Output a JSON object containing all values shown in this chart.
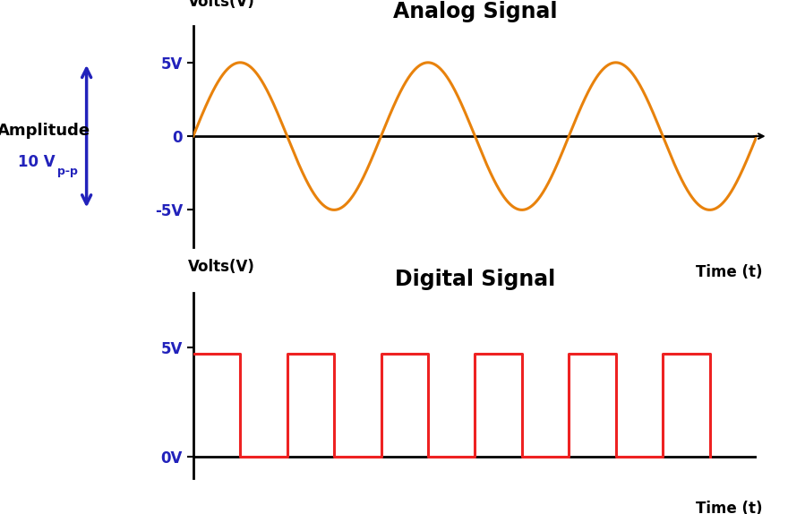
{
  "analog_title": "Analog Signal",
  "digital_title": "Digital Signal",
  "analog_ylabel": "Volts(V)",
  "digital_ylabel": "Volts(V)",
  "xlabel": "Time (t)",
  "analog_yticks": [
    -5,
    0,
    5
  ],
  "analog_yticklabels": [
    "-5V",
    "0",
    "5V"
  ],
  "digital_yticks": [
    0,
    5
  ],
  "digital_yticklabels": [
    "0V",
    "5V"
  ],
  "analog_num_cycles": 3,
  "analog_amplitude": 5,
  "analog_color": "#E8820C",
  "digital_color": "#EE2222",
  "axis_color": "#000000",
  "label_color": "#2222BB",
  "amplitude_text": "Amplitude",
  "amplitude_subtext": "10 V",
  "title_color": "#000000",
  "title_fontsize": 17,
  "label_fontsize": 12,
  "tick_fontsize": 12,
  "analog_ylim": [
    -7.5,
    7.5
  ],
  "digital_ylim": [
    -1.0,
    7.5
  ],
  "signal_linewidth": 2.2,
  "axis_linewidth": 2.0,
  "background_color": "#FFFFFF",
  "digital_num_pulses": 6,
  "digital_high": 4.7,
  "digital_duty": 0.5
}
